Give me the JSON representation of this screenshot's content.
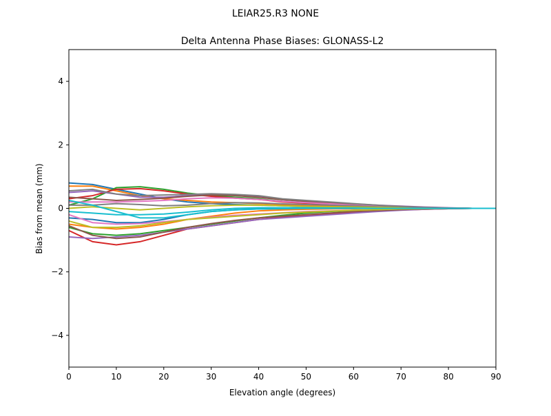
{
  "suptitle": "LEIAR25.R3      NONE",
  "chart_data": {
    "type": "line",
    "title": "Delta Antenna Phase Biases: GLONASS-L2",
    "xlabel": "Elevation angle (degrees)",
    "ylabel": "Bias from mean (mm)",
    "xlim": [
      0,
      90
    ],
    "ylim": [
      -5,
      5
    ],
    "xticks": [
      0,
      10,
      20,
      30,
      40,
      50,
      60,
      70,
      80,
      90
    ],
    "yticks": [
      -4,
      -2,
      0,
      2,
      4
    ],
    "grid": false,
    "colors": [
      "#1f77b4",
      "#ff7f0e",
      "#2ca02c",
      "#d62728",
      "#9467bd",
      "#8c564b",
      "#e377c2",
      "#7f7f7f",
      "#bcbd22",
      "#17becf"
    ],
    "x": [
      0,
      5,
      10,
      15,
      20,
      25,
      30,
      35,
      40,
      45,
      50,
      55,
      60,
      65,
      70,
      75,
      80,
      85,
      90
    ],
    "series": [
      {
        "values": [
          0.8,
          0.75,
          0.6,
          0.45,
          0.3,
          0.2,
          0.15,
          0.12,
          0.1,
          0.08,
          0.06,
          0.05,
          0.04,
          0.03,
          0.02,
          0.01,
          0.01,
          0,
          0
        ]
      },
      {
        "values": [
          0.7,
          0.7,
          0.55,
          0.4,
          0.3,
          0.25,
          0.2,
          0.18,
          0.15,
          0.12,
          0.1,
          0.08,
          0.06,
          0.04,
          0.03,
          0.02,
          0.01,
          0,
          0
        ]
      },
      {
        "values": [
          0.1,
          0.3,
          0.65,
          0.68,
          0.6,
          0.48,
          0.4,
          0.35,
          0.3,
          0.22,
          0.18,
          0.15,
          0.12,
          0.08,
          0.05,
          0.03,
          0.01,
          0,
          0
        ]
      },
      {
        "values": [
          0.3,
          0.4,
          0.6,
          0.62,
          0.55,
          0.45,
          0.38,
          0.32,
          0.28,
          0.2,
          0.16,
          0.13,
          0.1,
          0.07,
          0.05,
          0.03,
          0.01,
          0,
          0
        ]
      },
      {
        "values": [
          0.5,
          0.55,
          0.45,
          0.35,
          0.35,
          0.4,
          0.45,
          0.43,
          0.38,
          0.28,
          0.22,
          0.18,
          0.14,
          0.1,
          0.07,
          0.04,
          0.02,
          0,
          0
        ]
      },
      {
        "values": [
          0.35,
          0.3,
          0.25,
          0.28,
          0.32,
          0.38,
          0.42,
          0.4,
          0.35,
          0.27,
          0.22,
          0.17,
          0.13,
          0.09,
          0.06,
          0.03,
          0.01,
          0,
          0
        ]
      },
      {
        "values": [
          0.2,
          0.2,
          0.2,
          0.22,
          0.25,
          0.3,
          0.33,
          0.32,
          0.28,
          0.22,
          0.18,
          0.14,
          0.1,
          0.07,
          0.05,
          0.03,
          0.01,
          0,
          0
        ]
      },
      {
        "values": [
          0.1,
          0.1,
          0.15,
          0.12,
          0.08,
          0.1,
          0.15,
          0.18,
          0.17,
          0.14,
          0.12,
          0.1,
          0.08,
          0.05,
          0.03,
          0.02,
          0.01,
          0,
          0
        ]
      },
      {
        "values": [
          0.0,
          0.05,
          0.0,
          -0.05,
          0.0,
          0.05,
          0.08,
          0.1,
          0.1,
          0.08,
          0.06,
          0.05,
          0.04,
          0.03,
          0.02,
          0.01,
          0,
          0,
          0
        ]
      },
      {
        "values": [
          -0.1,
          -0.15,
          -0.2,
          -0.2,
          -0.18,
          -0.12,
          -0.05,
          0.0,
          0.02,
          0.02,
          0.02,
          0.01,
          0.01,
          0,
          0,
          0,
          0,
          0,
          0
        ]
      },
      {
        "values": [
          -0.3,
          -0.35,
          -0.45,
          -0.45,
          -0.35,
          -0.2,
          -0.1,
          -0.05,
          -0.02,
          -0.01,
          0,
          0,
          0,
          0,
          0,
          0,
          0,
          0,
          0
        ]
      },
      {
        "values": [
          -0.5,
          -0.6,
          -0.65,
          -0.6,
          -0.5,
          -0.35,
          -0.25,
          -0.15,
          -0.08,
          -0.05,
          -0.03,
          -0.02,
          -0.01,
          0,
          0,
          0,
          0,
          0,
          0
        ]
      },
      {
        "values": [
          -0.6,
          -0.8,
          -0.85,
          -0.8,
          -0.7,
          -0.6,
          -0.5,
          -0.4,
          -0.3,
          -0.22,
          -0.15,
          -0.1,
          -0.07,
          -0.05,
          -0.03,
          -0.02,
          -0.01,
          0,
          0
        ]
      },
      {
        "values": [
          -0.7,
          -1.05,
          -1.15,
          -1.05,
          -0.85,
          -0.65,
          -0.55,
          -0.45,
          -0.35,
          -0.28,
          -0.22,
          -0.17,
          -0.12,
          -0.08,
          -0.05,
          -0.03,
          -0.01,
          0,
          0
        ]
      },
      {
        "values": [
          -0.9,
          -0.95,
          -0.9,
          -0.85,
          -0.75,
          -0.65,
          -0.55,
          -0.45,
          -0.35,
          -0.3,
          -0.25,
          -0.2,
          -0.15,
          -0.1,
          -0.06,
          -0.03,
          -0.01,
          0,
          0
        ]
      },
      {
        "values": [
          -0.55,
          -0.85,
          -0.95,
          -0.9,
          -0.75,
          -0.6,
          -0.48,
          -0.38,
          -0.3,
          -0.25,
          -0.2,
          -0.15,
          -0.1,
          -0.07,
          -0.04,
          -0.02,
          -0.01,
          0,
          0
        ]
      },
      {
        "values": [
          -0.2,
          -0.45,
          -0.5,
          -0.48,
          -0.42,
          -0.35,
          -0.28,
          -0.22,
          -0.18,
          -0.14,
          -0.1,
          -0.08,
          -0.06,
          -0.04,
          -0.02,
          -0.01,
          0,
          0,
          0
        ]
      },
      {
        "values": [
          0.55,
          0.6,
          0.45,
          0.4,
          0.42,
          0.44,
          0.46,
          0.44,
          0.4,
          0.3,
          0.25,
          0.2,
          0.15,
          0.1,
          0.06,
          0.03,
          0.01,
          0,
          0
        ]
      },
      {
        "values": [
          -0.4,
          -0.6,
          -0.6,
          -0.55,
          -0.45,
          -0.35,
          -0.3,
          -0.25,
          -0.2,
          -0.15,
          -0.12,
          -0.09,
          -0.06,
          -0.04,
          -0.02,
          -0.01,
          0,
          0,
          0
        ]
      },
      {
        "values": [
          0.25,
          0.1,
          -0.1,
          -0.3,
          -0.3,
          -0.2,
          -0.1,
          -0.05,
          -0.02,
          -0.01,
          0,
          0,
          0,
          0,
          0,
          0,
          0,
          0,
          0
        ]
      }
    ]
  }
}
